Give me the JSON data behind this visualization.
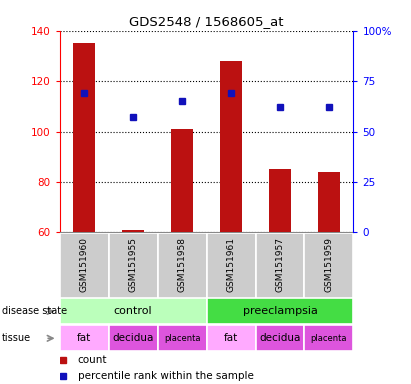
{
  "title": "GDS2548 / 1568605_at",
  "samples": [
    "GSM151960",
    "GSM151955",
    "GSM151958",
    "GSM151961",
    "GSM151957",
    "GSM151959"
  ],
  "counts": [
    135,
    61,
    101,
    128,
    85,
    84
  ],
  "percentile_ranks_pct": [
    69,
    57,
    65,
    69,
    62,
    62
  ],
  "ylim_left": [
    60,
    140
  ],
  "ylim_right": [
    0,
    100
  ],
  "yticks_left": [
    60,
    80,
    100,
    120,
    140
  ],
  "yticks_right": [
    0,
    25,
    50,
    75,
    100
  ],
  "bar_color": "#bb1111",
  "dot_color": "#1111bb",
  "bar_bottom": 60,
  "disease_states": [
    {
      "label": "control",
      "span": [
        0,
        3
      ],
      "color": "#bbffbb"
    },
    {
      "label": "preeclampsia",
      "span": [
        3,
        6
      ],
      "color": "#44dd44"
    }
  ],
  "tissues": [
    {
      "label": "fat",
      "span": [
        0,
        1
      ],
      "color": "#ffaaff"
    },
    {
      "label": "decidua",
      "span": [
        1,
        2
      ],
      "color": "#dd55dd"
    },
    {
      "label": "placenta",
      "span": [
        2,
        3
      ],
      "color": "#dd55dd"
    },
    {
      "label": "fat",
      "span": [
        3,
        4
      ],
      "color": "#ffaaff"
    },
    {
      "label": "decidua",
      "span": [
        4,
        5
      ],
      "color": "#dd55dd"
    },
    {
      "label": "placenta",
      "span": [
        5,
        6
      ],
      "color": "#dd55dd"
    }
  ],
  "legend_items": [
    {
      "label": "count",
      "color": "#bb1111"
    },
    {
      "label": "percentile rank within the sample",
      "color": "#1111bb"
    }
  ],
  "sample_bg_color": "#cccccc",
  "left_label_disease": "disease state",
  "left_label_tissue": "tissue",
  "arrow_color": "#888888"
}
